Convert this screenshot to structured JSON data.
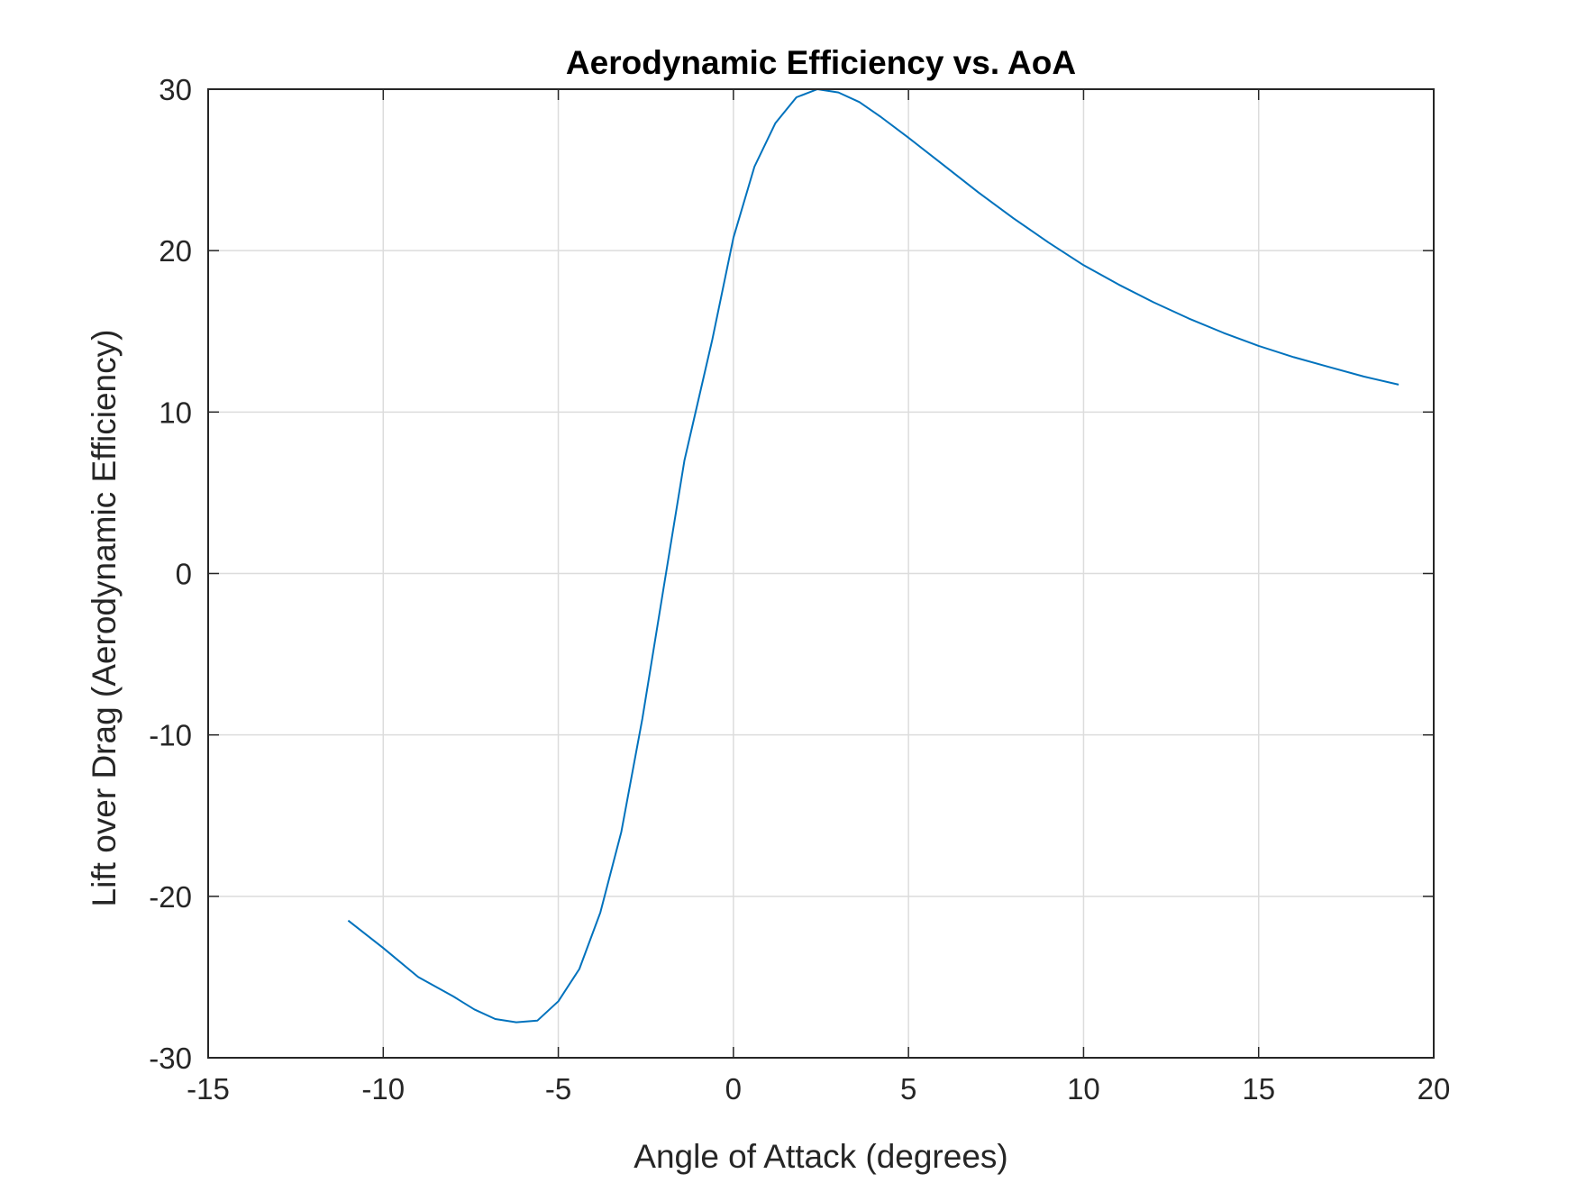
{
  "chart_data": {
    "type": "line",
    "title": "Aerodynamic Efficiency vs. AoA",
    "xlabel": "Angle of Attack (degrees)",
    "ylabel": "Lift over Drag (Aerodynamic Efficiency)",
    "xlim": [
      -15,
      20
    ],
    "ylim": [
      -30,
      30
    ],
    "xticks": [
      -15,
      -10,
      -5,
      0,
      5,
      10,
      15,
      20
    ],
    "yticks": [
      -30,
      -20,
      -10,
      0,
      10,
      20,
      30
    ],
    "xtick_labels": [
      "-15",
      "-10",
      "-5",
      "0",
      "5",
      "10",
      "15",
      "20"
    ],
    "ytick_labels": [
      "-30",
      "-20",
      "-10",
      "0",
      "10",
      "20",
      "30"
    ],
    "grid": true,
    "colors": {
      "series": "#0072BD",
      "axes": "#262626",
      "grid": "#DCDCDC"
    },
    "series": [
      {
        "x": [
          -11.0,
          -10.0,
          -9.0,
          -8.0,
          -7.4,
          -6.8,
          -6.2,
          -5.6,
          -5.0,
          -4.4,
          -3.8,
          -3.2,
          -2.6,
          -2.0,
          -1.4,
          -0.6,
          0.0,
          0.6,
          1.2,
          1.8,
          2.4,
          3.0,
          3.6,
          4.2,
          5.0,
          6.0,
          7.0,
          8.0,
          9.0,
          10.0,
          11.0,
          12.0,
          13.0,
          14.0,
          15.0,
          16.0,
          17.0,
          18.0,
          19.0
        ],
        "y": [
          -21.5,
          -23.2,
          -25.0,
          -26.2,
          -27.0,
          -27.6,
          -27.8,
          -27.7,
          -26.5,
          -24.5,
          -21.0,
          -16.0,
          -9.0,
          -1.0,
          7.0,
          14.5,
          20.8,
          25.2,
          27.9,
          29.5,
          30.0,
          29.8,
          29.2,
          28.3,
          27.0,
          25.3,
          23.6,
          22.0,
          20.5,
          19.1,
          17.9,
          16.8,
          15.8,
          14.9,
          14.1,
          13.4,
          12.8,
          12.2,
          11.7
        ]
      }
    ]
  }
}
